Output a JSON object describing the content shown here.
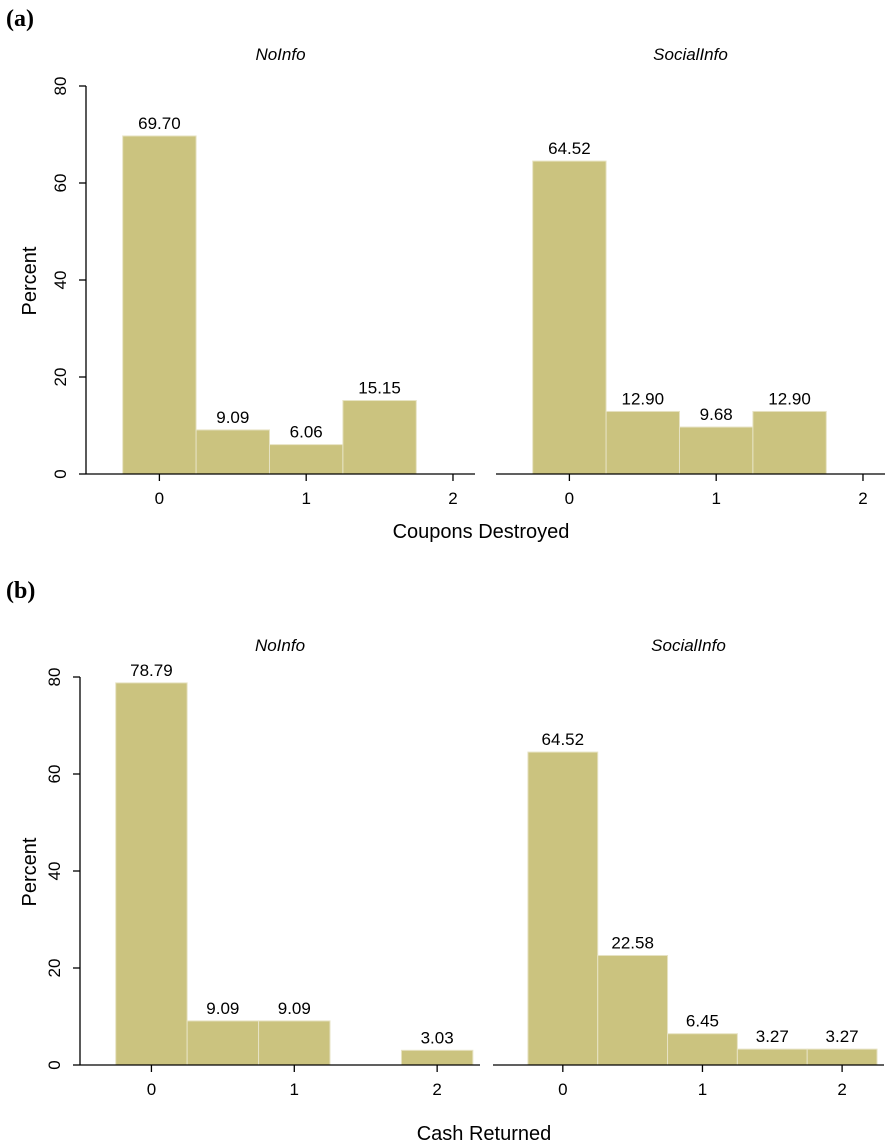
{
  "figures": [
    {
      "letter": "(a)",
      "xlabel": "Coupons Destroyed",
      "ylabel": "Percent"
    },
    {
      "letter": "(b)",
      "xlabel": "Cash Returned",
      "ylabel": "Percent"
    }
  ],
  "bar_color": "#cbc37f",
  "chart_data": [
    {
      "type": "bar",
      "figure": "(a)",
      "title": "NoInfo",
      "xlabel": "Coupons Destroyed",
      "ylabel": "Percent",
      "ylim": [
        0,
        80
      ],
      "yticks": [
        0,
        20,
        40,
        60,
        80
      ],
      "xlim": [
        -0.5,
        2.15
      ],
      "xticks": [
        0,
        1,
        2
      ],
      "bar_width": 0.5,
      "x": [
        0,
        0.5,
        1,
        1.5
      ],
      "values": [
        69.7,
        9.09,
        6.06,
        15.15
      ],
      "labels": [
        "69.70",
        "9.09",
        "6.06",
        "15.15"
      ]
    },
    {
      "type": "bar",
      "figure": "(a)",
      "title": "SocialInfo",
      "xlabel": "Coupons Destroyed",
      "ylabel": "Percent",
      "ylim": [
        0,
        80
      ],
      "yticks": [
        0,
        20,
        40,
        60,
        80
      ],
      "xlim": [
        -0.5,
        2.15
      ],
      "xticks": [
        0,
        1,
        2
      ],
      "bar_width": 0.5,
      "x": [
        0,
        0.5,
        1,
        1.5
      ],
      "values": [
        64.52,
        12.9,
        9.68,
        12.9
      ],
      "labels": [
        "64.52",
        "12.90",
        "9.68",
        "12.90"
      ]
    },
    {
      "type": "bar",
      "figure": "(b)",
      "title": "NoInfo",
      "xlabel": "Cash Returned",
      "ylabel": "Percent",
      "ylim": [
        0,
        80
      ],
      "yticks": [
        0,
        20,
        40,
        60,
        80
      ],
      "xlim": [
        -0.5,
        2.3
      ],
      "xticks": [
        0,
        1,
        2
      ],
      "bar_width": 0.5,
      "x": [
        0,
        0.5,
        1,
        2
      ],
      "values": [
        78.79,
        9.09,
        9.09,
        3.03
      ],
      "labels": [
        "78.79",
        "9.09",
        "9.09",
        "3.03"
      ]
    },
    {
      "type": "bar",
      "figure": "(b)",
      "title": "SocialInfo",
      "xlabel": "Cash Returned",
      "ylabel": "Percent",
      "ylim": [
        0,
        80
      ],
      "yticks": [
        0,
        20,
        40,
        60,
        80
      ],
      "xlim": [
        -0.5,
        2.3
      ],
      "xticks": [
        0,
        1,
        2
      ],
      "bar_width": 0.5,
      "x": [
        0,
        0.5,
        1,
        1.5,
        2
      ],
      "values": [
        64.52,
        22.58,
        6.45,
        3.27,
        3.27
      ],
      "labels": [
        "64.52",
        "22.58",
        "6.45",
        "3.27",
        "3.27"
      ]
    }
  ]
}
